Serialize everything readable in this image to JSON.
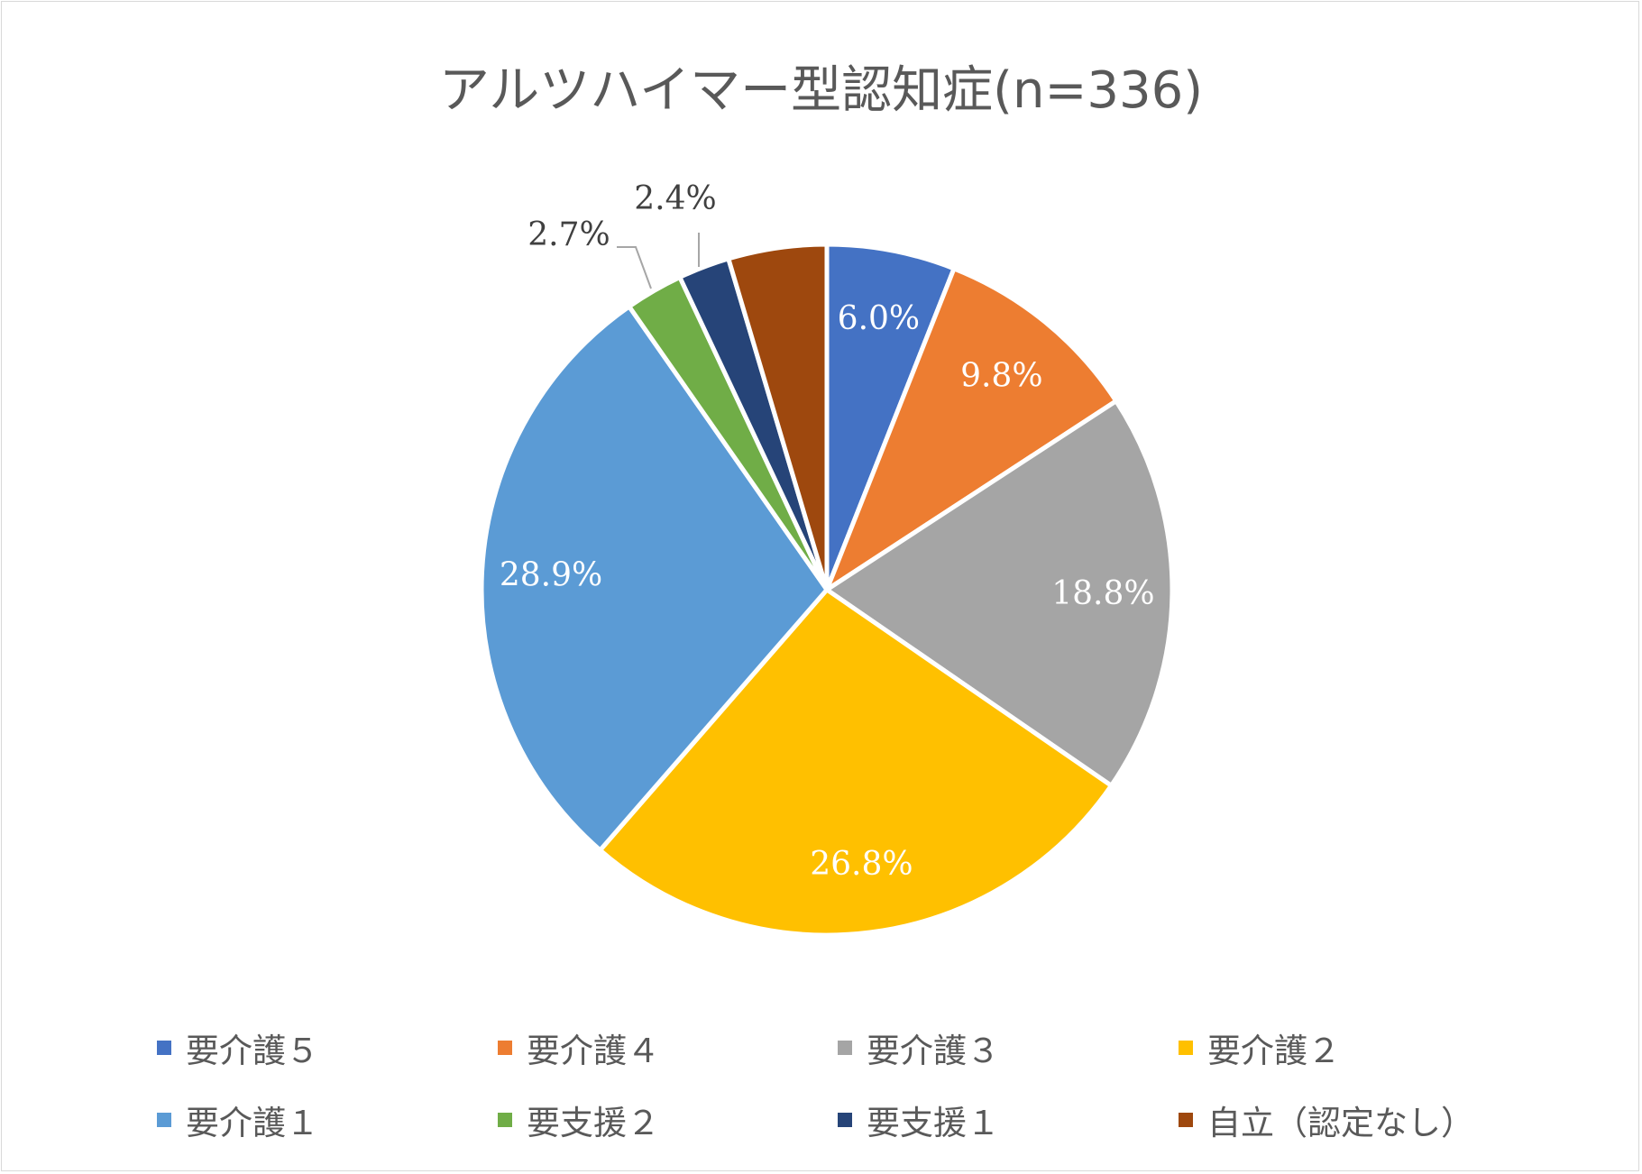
{
  "chart_data": {
    "type": "pie",
    "title": "アルツハイマー型認知症(n=336)",
    "slices": [
      {
        "name": "要介護５",
        "value": 6.0,
        "label": "6.0%",
        "color": "#4472C4"
      },
      {
        "name": "要介護４",
        "value": 9.8,
        "label": "9.8%",
        "color": "#ED7D31"
      },
      {
        "name": "要介護３",
        "value": 18.8,
        "label": "18.8%",
        "color": "#A5A5A5"
      },
      {
        "name": "要介護２",
        "value": 26.8,
        "label": "26.8%",
        "color": "#FFC000"
      },
      {
        "name": "要介護１",
        "value": 28.9,
        "label": "28.9%",
        "color": "#5B9BD5"
      },
      {
        "name": "要支援２",
        "value": 2.7,
        "label": "2.7%",
        "color": "#70AD47"
      },
      {
        "name": "要支援１",
        "value": 2.4,
        "label": "2.4%",
        "color": "#264478"
      },
      {
        "name": "自立（認定なし）",
        "value": 4.6,
        "label": null,
        "color": "#9E480E"
      }
    ],
    "legend_position": "bottom"
  }
}
